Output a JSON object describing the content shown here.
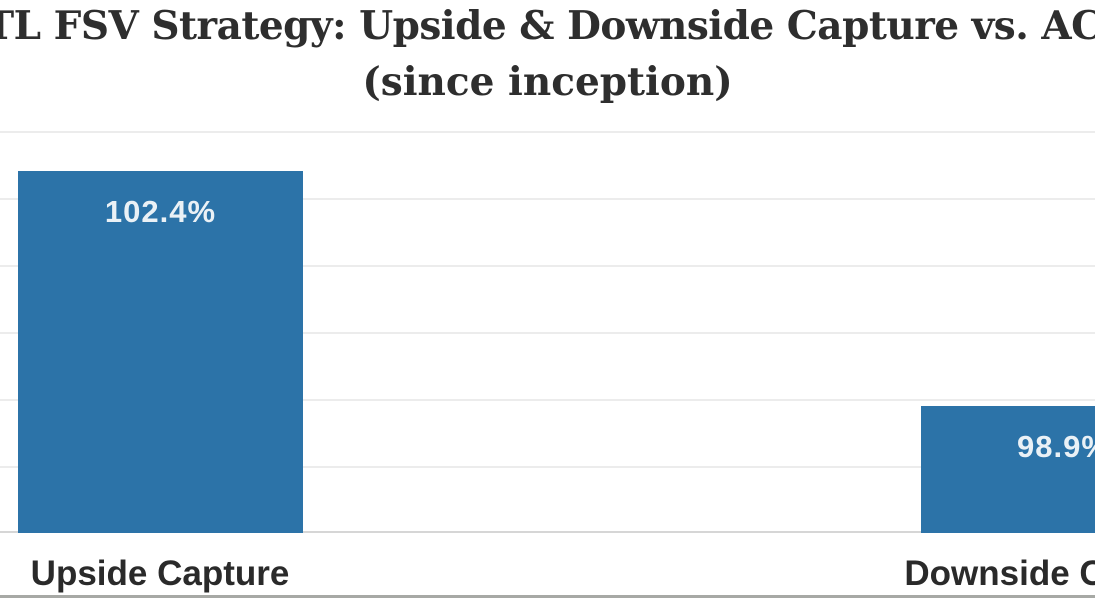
{
  "title": {
    "line1": "INTL FSV Strategy: Upside & Downside Capture vs. ACWI",
    "line2": "(since inception)"
  },
  "chart_data": {
    "type": "bar",
    "title": "INTL FSV Strategy: Upside & Downside Capture vs. ACWI (since inception)",
    "categories": [
      "Upside Capture",
      "Downside Capture"
    ],
    "values": [
      102.4,
      98.9
    ],
    "value_labels": [
      "102.4%",
      "98.9%"
    ],
    "xlabel": "",
    "ylabel": "",
    "ylim": [
      97,
      103
    ],
    "gridline_step_pct": 1,
    "grid": true,
    "legend_position": "none",
    "value_label_position": "inside-top"
  },
  "colors": {
    "background": "#ffffff",
    "bar": "#2c73a8",
    "bar_value_label": "#eaf1f6",
    "title_text": "#2e2e2e",
    "category_label": "#2a2a2a",
    "gridline": "#ececec",
    "axis_line": "#d6d6d6",
    "bottom_rule": "#a7a9a5"
  }
}
